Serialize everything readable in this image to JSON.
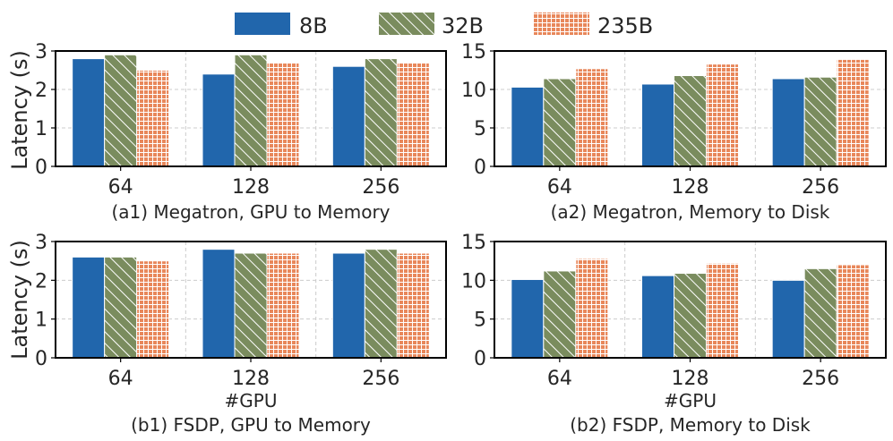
{
  "legend": [
    {
      "name": "8B",
      "color": "#2166ac",
      "pattern": "solid"
    },
    {
      "name": "32B",
      "color": "#7a8c5e",
      "pattern": "diagonal"
    },
    {
      "name": "235B",
      "color": "#e8875a",
      "pattern": "grid"
    }
  ],
  "shared_ylabel": "Latency (s)",
  "shared_xlabel": "#GPU",
  "chart_data": [
    {
      "id": "a1",
      "type": "bar",
      "title": "(a1) Megatron, GPU to Memory",
      "xlabel": "",
      "ylabel": "Latency (s)",
      "categories": [
        "64",
        "128",
        "256"
      ],
      "ylim": [
        0,
        3
      ],
      "yticks": [
        0,
        1,
        2,
        3
      ],
      "series": [
        {
          "name": "8B",
          "values": [
            2.8,
            2.4,
            2.6
          ]
        },
        {
          "name": "32B",
          "values": [
            2.9,
            2.9,
            2.8
          ]
        },
        {
          "name": "235B",
          "values": [
            2.5,
            2.7,
            2.7
          ]
        }
      ]
    },
    {
      "id": "a2",
      "type": "bar",
      "title": "(a2) Megatron, Memory to Disk",
      "xlabel": "",
      "ylabel": "",
      "categories": [
        "64",
        "128",
        "256"
      ],
      "ylim": [
        0,
        15
      ],
      "yticks": [
        0,
        5,
        10,
        15
      ],
      "series": [
        {
          "name": "8B",
          "values": [
            10.3,
            10.7,
            11.4
          ]
        },
        {
          "name": "32B",
          "values": [
            11.4,
            11.8,
            11.6
          ]
        },
        {
          "name": "235B",
          "values": [
            12.7,
            13.3,
            13.9
          ]
        }
      ]
    },
    {
      "id": "b1",
      "type": "bar",
      "title": "(b1) FSDP, GPU to Memory",
      "xlabel": "#GPU",
      "ylabel": "Latency (s)",
      "categories": [
        "64",
        "128",
        "256"
      ],
      "ylim": [
        0,
        3
      ],
      "yticks": [
        0,
        1,
        2,
        3
      ],
      "series": [
        {
          "name": "8B",
          "values": [
            2.6,
            2.8,
            2.7
          ]
        },
        {
          "name": "32B",
          "values": [
            2.6,
            2.7,
            2.8
          ]
        },
        {
          "name": "235B",
          "values": [
            2.5,
            2.7,
            2.7
          ]
        }
      ]
    },
    {
      "id": "b2",
      "type": "bar",
      "title": "(b2) FSDP, Memory to Disk",
      "xlabel": "#GPU",
      "ylabel": "",
      "categories": [
        "64",
        "128",
        "256"
      ],
      "ylim": [
        0,
        15
      ],
      "yticks": [
        0,
        5,
        10,
        15
      ],
      "series": [
        {
          "name": "8B",
          "values": [
            10.1,
            10.6,
            10.0
          ]
        },
        {
          "name": "32B",
          "values": [
            11.2,
            10.9,
            11.5
          ]
        },
        {
          "name": "235B",
          "values": [
            12.8,
            12.2,
            12.0
          ]
        }
      ]
    }
  ]
}
